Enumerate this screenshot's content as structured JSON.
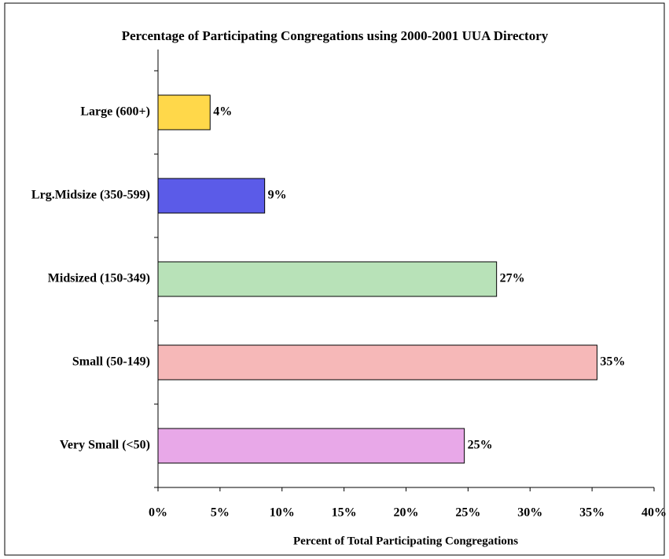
{
  "chart_data": {
    "type": "barh",
    "title": "Percentage of Participating Congregations using 2000-2001 UUA Directory",
    "x_label": "Percent of Total Participating Congregations",
    "categories": [
      "Large (600+)",
      "Lrg.Midsize (350-599)",
      "Midsized (150-349)",
      "Small (50-149)",
      "Very Small (<50)"
    ],
    "values": [
      4.2,
      8.6,
      27.3,
      35.4,
      24.7
    ],
    "value_labels": [
      "4%",
      "9%",
      "27%",
      "35%",
      "25%"
    ],
    "colors": [
      "#ffd84a",
      "#5b5be8",
      "#b8e2b8",
      "#f6b8b8",
      "#e8a8e8"
    ],
    "xlim": [
      0,
      40
    ],
    "xticks": [
      {
        "value": 0,
        "label": "0%"
      },
      {
        "value": 5,
        "label": "5%"
      },
      {
        "value": 10,
        "label": "10%"
      },
      {
        "value": 15,
        "label": "15%"
      },
      {
        "value": 20,
        "label": "20%"
      },
      {
        "value": 25,
        "label": "25%"
      },
      {
        "value": 30,
        "label": "30%"
      },
      {
        "value": 35,
        "label": "35%"
      },
      {
        "value": 40,
        "label": "40%"
      }
    ],
    "grid": false
  }
}
